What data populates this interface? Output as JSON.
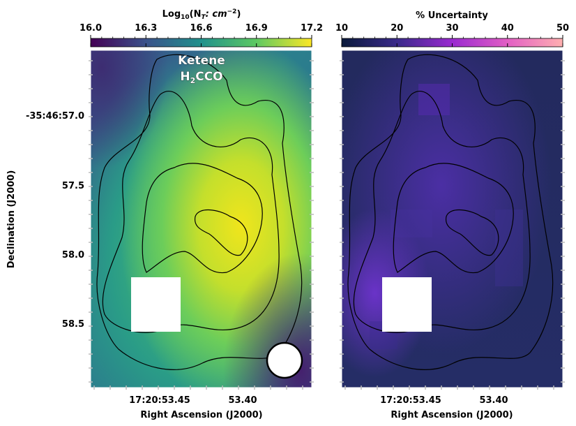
{
  "chart_data": [
    {
      "type": "heatmap",
      "panel": "left",
      "title": "",
      "colorbar": {
        "label_prefix": "Log",
        "label_sub": "10",
        "label_rest": "(N",
        "label_sub2": "T",
        "label_tail": ": cm",
        "label_sup": "−2",
        "label_close": ")",
        "colormap": "viridis",
        "range": [
          16.0,
          17.2
        ],
        "ticks": [
          "16.0",
          "16.3",
          "16.6",
          "16.9",
          "17.2"
        ],
        "tick_values": [
          16.0,
          16.3,
          16.6,
          16.9,
          17.2
        ]
      },
      "annotation": {
        "line1": "Ketene",
        "line2_pre": "H",
        "line2_sub": "2",
        "line2_post": "CCO"
      },
      "xlabel": "Right Ascension (J2000)",
      "ylabel": "Declination (J2000)",
      "xticks": [
        "17:20:53.45",
        "53.40"
      ],
      "yticks": [
        "-35:46:57.0",
        "57.5",
        "58.0",
        "58.5"
      ],
      "beam_marker": "beam-ellipse"
    },
    {
      "type": "heatmap",
      "panel": "right",
      "title": "",
      "colorbar": {
        "label": "% Uncertainty",
        "colormap": "magma-like",
        "range": [
          10,
          50
        ],
        "ticks": [
          "10",
          "20",
          "30",
          "40",
          "50"
        ],
        "tick_values": [
          10,
          20,
          30,
          40,
          50
        ]
      },
      "xlabel": "Right Ascension (J2000)",
      "xticks": [
        "17:20:53.45",
        "53.40"
      ]
    }
  ],
  "colors": {
    "viridis_stops": [
      "#440154",
      "#3b528b",
      "#21918c",
      "#5ec962",
      "#fde725"
    ],
    "uncert_stops": [
      "#0a1a3a",
      "#3a2a8a",
      "#9a2ad0",
      "#e25fc4",
      "#ffb0b0"
    ],
    "contour": "#000000",
    "mask": "#ffffff"
  }
}
